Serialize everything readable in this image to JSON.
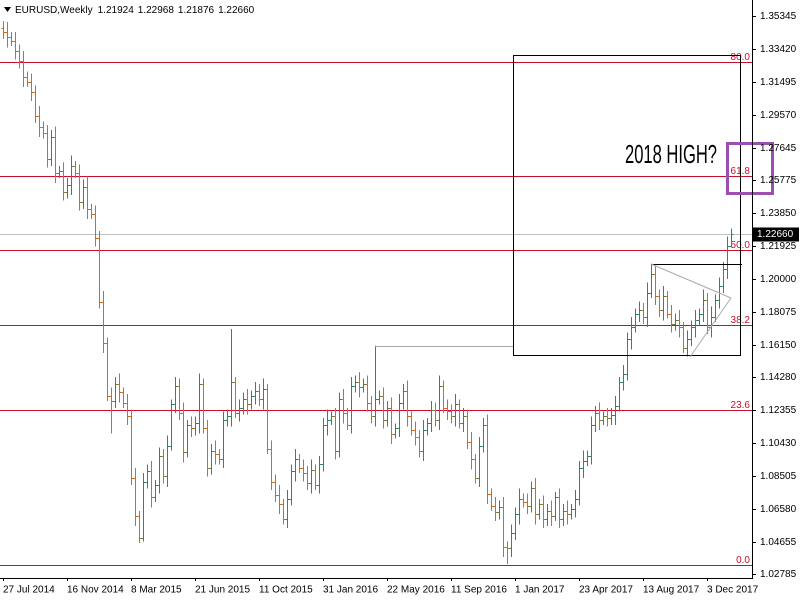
{
  "chart_data": {
    "type": "ohlc",
    "title": "EURUSD,Weekly",
    "readout": [
      "1.21924",
      "1.22968",
      "1.21876",
      "1.22660"
    ],
    "annotation": "2018 HIGH?",
    "up_color": "#2e8b57",
    "down_color": "#d2691e",
    "ylim": [
      1.0258,
      1.3628
    ],
    "yticks": [
      1.35345,
      {
        "value": 1.3342,
        "label": "1.33420"
      },
      1.31495,
      {
        "value": 1.2957,
        "label": "1.29570"
      },
      1.27645,
      1.25775,
      {
        "value": 1.2385,
        "label": "1.23850"
      },
      1.21925,
      {
        "value": 1.2,
        "label": "1.20000"
      },
      1.18075,
      {
        "value": 1.1615,
        "label": "1.16150"
      },
      {
        "value": 1.1428,
        "label": "1.14280"
      },
      1.12355,
      {
        "value": 1.1043,
        "label": "1.10430"
      },
      1.08505,
      {
        "value": 1.0658,
        "label": "1.06580"
      },
      1.04655,
      1.02785
    ],
    "fibo": {
      "color": "#c8102e",
      "levels": [
        1.0334,
        1.1238,
        1.1733,
        1.2171,
        1.2602,
        1.3266
      ],
      "labels": [
        "0.0",
        "23.6",
        "38.2",
        "50.0",
        "61.8",
        "80.0"
      ]
    },
    "last_price": {
      "value": 1.2266,
      "label": "1.22660"
    },
    "categories": [
      "27 Jul 2014",
      null,
      null,
      null,
      null,
      null,
      null,
      null,
      null,
      null,
      null,
      null,
      null,
      null,
      null,
      null,
      "16 Nov 2014",
      null,
      null,
      null,
      null,
      null,
      null,
      null,
      null,
      null,
      null,
      null,
      null,
      null,
      null,
      null,
      "8 Mar 2015",
      null,
      null,
      null,
      null,
      null,
      null,
      null,
      null,
      null,
      null,
      null,
      null,
      null,
      null,
      null,
      "21 Jun 2015",
      null,
      null,
      null,
      null,
      null,
      null,
      null,
      null,
      null,
      null,
      null,
      null,
      null,
      null,
      null,
      "11 Oct 2015",
      null,
      null,
      null,
      null,
      null,
      null,
      null,
      null,
      null,
      null,
      null,
      null,
      null,
      null,
      null,
      "31 Jan 2016",
      null,
      null,
      null,
      null,
      null,
      null,
      null,
      null,
      null,
      null,
      null,
      null,
      null,
      null,
      null,
      "22 May 2016",
      null,
      null,
      null,
      null,
      null,
      null,
      null,
      null,
      null,
      null,
      null,
      null,
      null,
      null,
      null,
      "11 Sep 2016",
      null,
      null,
      null,
      null,
      null,
      null,
      null,
      null,
      null,
      null,
      null,
      null,
      null,
      null,
      null,
      "1 Jan 2017",
      null,
      null,
      null,
      null,
      null,
      null,
      null,
      null,
      null,
      null,
      null,
      null,
      null,
      null,
      null,
      "23 Apr 2017",
      null,
      null,
      null,
      null,
      null,
      null,
      null,
      null,
      null,
      null,
      null,
      null,
      null,
      null,
      null,
      "13 Aug 2017",
      null,
      null,
      null,
      null,
      null,
      null,
      null,
      null,
      null,
      null,
      null,
      null,
      null,
      null,
      null,
      "3 Dec 2017",
      null,
      null,
      null,
      null,
      null,
      null
    ],
    "open": [
      1.3465,
      1.344,
      1.341,
      1.339,
      1.333,
      1.327,
      1.318,
      1.315,
      1.309,
      1.295,
      1.289,
      1.285,
      1.27,
      1.283,
      1.262,
      1.263,
      1.251,
      1.255,
      1.266,
      1.262,
      1.245,
      1.254,
      1.241,
      1.238,
      1.224,
      1.187,
      1.163,
      1.132,
      1.129,
      1.139,
      1.134,
      1.128,
      1.12,
      1.084,
      1.062,
      1.049,
      1.082,
      1.088,
      1.073,
      1.08,
      1.097,
      1.085,
      1.103,
      1.127,
      1.138,
      1.122,
      1.099,
      1.115,
      1.113,
      1.116,
      1.139,
      1.113,
      1.09,
      1.1,
      1.098,
      1.095,
      1.118,
      1.12,
      1.14,
      1.122,
      1.125,
      1.13,
      1.127,
      1.132,
      1.135,
      1.13,
      1.136,
      1.101,
      1.082,
      1.074,
      1.069,
      1.06,
      1.072,
      1.088,
      1.095,
      1.09,
      1.087,
      1.081,
      1.089,
      1.08,
      1.092,
      1.115,
      1.118,
      1.12,
      1.1,
      1.13,
      1.122,
      1.115,
      1.138,
      1.14,
      1.137,
      1.139,
      1.128,
      1.12,
      1.13,
      1.132,
      1.118,
      1.125,
      1.11,
      1.113,
      1.128,
      1.135,
      1.12,
      1.112,
      1.108,
      1.1,
      1.112,
      1.116,
      1.124,
      1.118,
      1.138,
      1.125,
      1.123,
      1.12,
      1.127,
      1.116,
      1.12,
      1.105,
      1.095,
      1.084,
      1.103,
      1.115,
      1.075,
      1.068,
      1.064,
      1.067,
      1.044,
      1.043,
      1.052,
      1.063,
      1.072,
      1.07,
      1.068,
      1.078,
      1.063,
      1.069,
      1.06,
      1.065,
      1.062,
      1.073,
      1.06,
      1.065,
      1.063,
      1.066,
      1.072,
      1.09,
      1.094,
      1.097,
      1.115,
      1.122,
      1.118,
      1.12,
      1.119,
      1.121,
      1.126,
      1.14,
      1.145,
      1.165,
      1.172,
      1.18,
      1.182,
      1.178,
      1.192,
      1.203,
      1.19,
      1.182,
      1.19,
      1.18,
      1.174,
      1.176,
      1.172,
      1.16,
      1.165,
      1.172,
      1.176,
      1.18,
      1.188,
      1.172,
      1.178,
      1.188,
      1.196,
      1.206,
      1.21924
    ],
    "high": [
      1.3505,
      1.35,
      1.344,
      1.344,
      1.337,
      1.333,
      1.321,
      1.32,
      1.313,
      1.301,
      1.292,
      1.29,
      1.287,
      1.289,
      1.266,
      1.268,
      1.259,
      1.272,
      1.269,
      1.267,
      1.258,
      1.26,
      1.244,
      1.243,
      1.228,
      1.193,
      1.166,
      1.137,
      1.143,
      1.145,
      1.137,
      1.133,
      1.124,
      1.09,
      1.065,
      1.087,
      1.092,
      1.094,
      1.083,
      1.102,
      1.101,
      1.109,
      1.13,
      1.143,
      1.142,
      1.128,
      1.118,
      1.12,
      1.12,
      1.145,
      1.142,
      1.118,
      1.104,
      1.106,
      1.101,
      1.123,
      1.124,
      1.171,
      1.143,
      1.13,
      1.134,
      1.136,
      1.135,
      1.14,
      1.139,
      1.142,
      1.139,
      1.106,
      1.086,
      1.08,
      1.072,
      1.077,
      1.092,
      1.101,
      1.098,
      1.095,
      1.091,
      1.095,
      1.092,
      1.097,
      1.119,
      1.124,
      1.123,
      1.125,
      1.134,
      1.136,
      1.125,
      1.143,
      1.144,
      1.146,
      1.142,
      1.144,
      1.132,
      1.1615,
      1.135,
      1.137,
      1.129,
      1.131,
      1.116,
      1.133,
      1.139,
      1.141,
      1.123,
      1.117,
      1.112,
      1.118,
      1.119,
      1.129,
      1.128,
      1.144,
      1.141,
      1.13,
      1.127,
      1.133,
      1.13,
      1.125,
      1.124,
      1.111,
      1.098,
      1.108,
      1.119,
      1.121,
      1.078,
      1.073,
      1.071,
      1.073,
      1.047,
      1.057,
      1.067,
      1.078,
      1.075,
      1.075,
      1.082,
      1.084,
      1.072,
      1.074,
      1.069,
      1.071,
      1.076,
      1.078,
      1.069,
      1.071,
      1.069,
      1.077,
      1.094,
      1.1,
      1.1,
      1.12,
      1.126,
      1.128,
      1.123,
      1.125,
      1.125,
      1.132,
      1.143,
      1.15,
      1.169,
      1.178,
      1.183,
      1.187,
      1.186,
      1.198,
      1.2092,
      1.208,
      1.194,
      1.196,
      1.193,
      1.185,
      1.18,
      1.182,
      1.175,
      1.17,
      1.176,
      1.182,
      1.183,
      1.194,
      1.192,
      1.184,
      1.191,
      1.201,
      1.21,
      1.225,
      1.22968
    ],
    "low": [
      1.34,
      1.335,
      1.336,
      1.328,
      1.323,
      1.312,
      1.312,
      1.304,
      1.291,
      1.283,
      1.282,
      1.265,
      1.266,
      1.256,
      1.259,
      1.246,
      1.247,
      1.249,
      1.259,
      1.24,
      1.241,
      1.235,
      1.235,
      1.219,
      1.183,
      1.157,
      1.129,
      1.11,
      1.125,
      1.128,
      1.125,
      1.115,
      1.08,
      1.056,
      1.0462,
      1.047,
      1.078,
      1.067,
      1.07,
      1.075,
      1.081,
      1.079,
      1.1,
      1.122,
      1.118,
      1.093,
      1.096,
      1.108,
      1.109,
      1.11,
      1.11,
      1.085,
      1.086,
      1.092,
      1.092,
      1.09,
      1.114,
      1.114,
      1.119,
      1.117,
      1.121,
      1.121,
      1.124,
      1.127,
      1.126,
      1.124,
      1.098,
      1.077,
      1.07,
      1.063,
      1.057,
      1.055,
      1.068,
      1.082,
      1.087,
      1.082,
      1.077,
      1.075,
      1.077,
      1.075,
      1.088,
      1.109,
      1.115,
      1.095,
      1.096,
      1.116,
      1.112,
      1.11,
      1.134,
      1.131,
      1.134,
      1.123,
      1.116,
      1.114,
      1.127,
      1.113,
      1.114,
      1.104,
      1.107,
      1.108,
      1.124,
      1.114,
      1.109,
      1.103,
      1.096,
      1.094,
      1.109,
      1.111,
      1.114,
      1.112,
      1.122,
      1.118,
      1.116,
      1.114,
      1.113,
      1.111,
      1.101,
      1.089,
      1.081,
      1.079,
      1.099,
      1.069,
      1.065,
      1.059,
      1.06,
      1.038,
      1.034,
      1.038,
      1.048,
      1.057,
      1.067,
      1.063,
      1.064,
      1.057,
      1.06,
      1.055,
      1.056,
      1.056,
      1.059,
      1.055,
      1.056,
      1.057,
      1.06,
      1.061,
      1.068,
      1.084,
      1.091,
      1.092,
      1.111,
      1.112,
      1.115,
      1.114,
      1.115,
      1.115,
      1.123,
      1.135,
      1.141,
      1.159,
      1.169,
      1.175,
      1.174,
      1.172,
      1.189,
      1.185,
      1.178,
      1.176,
      1.177,
      1.169,
      1.17,
      1.166,
      1.157,
      1.155,
      1.161,
      1.166,
      1.173,
      1.175,
      1.168,
      1.166,
      1.175,
      1.183,
      1.192,
      1.2,
      1.21876
    ],
    "close": [
      1.344,
      1.341,
      1.339,
      1.333,
      1.327,
      1.318,
      1.315,
      1.309,
      1.295,
      1.289,
      1.285,
      1.27,
      1.283,
      1.262,
      1.263,
      1.251,
      1.255,
      1.266,
      1.262,
      1.245,
      1.254,
      1.241,
      1.238,
      1.224,
      1.187,
      1.163,
      1.132,
      1.129,
      1.139,
      1.134,
      1.128,
      1.12,
      1.084,
      1.062,
      1.049,
      1.082,
      1.088,
      1.073,
      1.08,
      1.097,
      1.085,
      1.103,
      1.127,
      1.138,
      1.122,
      1.099,
      1.115,
      1.113,
      1.116,
      1.139,
      1.113,
      1.09,
      1.1,
      1.098,
      1.095,
      1.118,
      1.12,
      1.14,
      1.122,
      1.125,
      1.13,
      1.127,
      1.132,
      1.135,
      1.13,
      1.136,
      1.101,
      1.082,
      1.074,
      1.069,
      1.06,
      1.072,
      1.088,
      1.095,
      1.09,
      1.087,
      1.081,
      1.089,
      1.08,
      1.092,
      1.115,
      1.118,
      1.12,
      1.1,
      1.13,
      1.122,
      1.115,
      1.138,
      1.14,
      1.137,
      1.139,
      1.128,
      1.12,
      1.13,
      1.132,
      1.118,
      1.125,
      1.11,
      1.113,
      1.128,
      1.135,
      1.12,
      1.112,
      1.108,
      1.1,
      1.112,
      1.116,
      1.124,
      1.118,
      1.138,
      1.125,
      1.123,
      1.12,
      1.127,
      1.116,
      1.12,
      1.105,
      1.095,
      1.084,
      1.103,
      1.115,
      1.075,
      1.068,
      1.064,
      1.067,
      1.044,
      1.043,
      1.052,
      1.063,
      1.072,
      1.07,
      1.068,
      1.078,
      1.063,
      1.069,
      1.06,
      1.065,
      1.062,
      1.073,
      1.06,
      1.065,
      1.063,
      1.066,
      1.072,
      1.09,
      1.094,
      1.097,
      1.115,
      1.122,
      1.118,
      1.12,
      1.119,
      1.121,
      1.126,
      1.14,
      1.145,
      1.165,
      1.172,
      1.18,
      1.182,
      1.178,
      1.192,
      1.203,
      1.19,
      1.182,
      1.19,
      1.18,
      1.174,
      1.176,
      1.172,
      1.16,
      1.165,
      1.172,
      1.176,
      1.18,
      1.188,
      1.172,
      1.178,
      1.188,
      1.196,
      1.206,
      1.21924,
      1.2266
    ]
  }
}
